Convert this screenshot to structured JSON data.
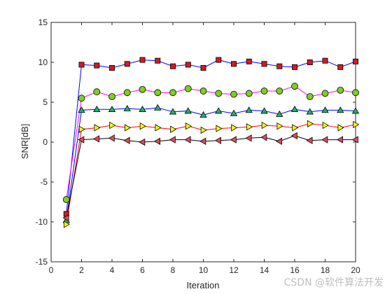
{
  "chart_data": {
    "type": "line",
    "xlabel": "Iteration",
    "ylabel": "SNR[dB]",
    "xlim": [
      0,
      20
    ],
    "ylim": [
      -15,
      15
    ],
    "xticks": [
      0,
      2,
      4,
      6,
      8,
      10,
      12,
      14,
      16,
      18,
      20
    ],
    "yticks": [
      -15,
      -10,
      -5,
      0,
      5,
      10,
      15
    ],
    "grid": false,
    "box": true,
    "x": [
      1,
      2,
      3,
      4,
      5,
      6,
      7,
      8,
      9,
      10,
      11,
      12,
      13,
      14,
      15,
      16,
      17,
      18,
      19,
      20
    ],
    "series": [
      {
        "marker": "square",
        "line_color": "#0000ff",
        "marker_color": "#d7191c",
        "values": [
          -9.0,
          9.7,
          9.6,
          9.3,
          9.8,
          10.3,
          10.2,
          9.5,
          9.7,
          9.3,
          10.3,
          9.8,
          10.1,
          9.8,
          9.5,
          9.4,
          10.0,
          10.2,
          9.4,
          10.1
        ]
      },
      {
        "marker": "circle",
        "line_color": "#ff00ff",
        "marker_color": "#7fcf1f",
        "values": [
          -7.2,
          5.5,
          6.3,
          5.7,
          6.2,
          6.6,
          6.2,
          6.2,
          6.7,
          6.4,
          6.1,
          6.0,
          6.1,
          6.4,
          6.4,
          7.0,
          5.7,
          6.1,
          6.5,
          6.2
        ]
      },
      {
        "marker": "triangle-up",
        "line_color": "#0000ff",
        "marker_color": "#1fb56b",
        "values": [
          -9.8,
          4.0,
          4.1,
          4.1,
          4.2,
          4.1,
          4.3,
          3.8,
          3.9,
          3.4,
          3.9,
          3.6,
          4.0,
          3.9,
          3.5,
          4.1,
          3.8,
          4.0,
          4.0,
          3.9
        ]
      },
      {
        "marker": "triangle-right",
        "line_color": "#ff0000",
        "marker_color": "#ffff00",
        "values": [
          -10.3,
          1.6,
          1.8,
          2.1,
          1.8,
          2.0,
          1.8,
          1.6,
          2.0,
          1.5,
          1.7,
          1.8,
          1.9,
          2.1,
          2.0,
          1.8,
          2.3,
          2.1,
          1.8,
          2.2
        ]
      },
      {
        "marker": "triangle-left",
        "line_color": "#000000",
        "marker_color": "#e34a5a",
        "values": [
          -9.5,
          0.3,
          0.4,
          0.5,
          0.2,
          0.0,
          0.1,
          0.3,
          0.3,
          0.1,
          0.2,
          0.3,
          0.5,
          0.6,
          0.1,
          0.8,
          0.2,
          0.3,
          0.3,
          0.3
        ]
      }
    ]
  },
  "watermark": "CSDN @软件算法开发"
}
